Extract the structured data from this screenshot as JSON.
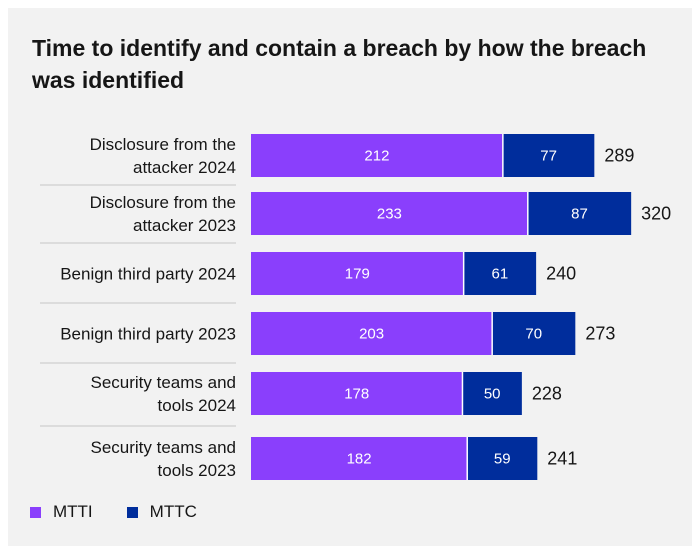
{
  "title": "Time to identify and contain a breach by how the breach was identified",
  "colors": {
    "mtti": "#8a3ffc",
    "mttc": "#002d9c",
    "background": "#f2f2f2",
    "divider": "#c6c6c6"
  },
  "chart_data": {
    "type": "bar",
    "orientation": "horizontal",
    "stacked": true,
    "categories": [
      [
        "Disclosure from the",
        "attacker 2024"
      ],
      [
        "Disclosure from the",
        "attacker 2023"
      ],
      [
        "Benign third party 2024"
      ],
      [
        "Benign third party 2023"
      ],
      [
        "Security teams and",
        "tools 2024"
      ],
      [
        "Security teams and",
        "tools 2023"
      ]
    ],
    "series": [
      {
        "name": "MTTI",
        "values": [
          212,
          233,
          179,
          203,
          178,
          182
        ]
      },
      {
        "name": "MTTC",
        "values": [
          77,
          87,
          61,
          70,
          50,
          59
        ]
      }
    ],
    "totals": [
      289,
      320,
      240,
      273,
      228,
      241
    ],
    "xlim": [
      0,
      320
    ],
    "grid": false,
    "legend_position": "bottom-left"
  }
}
